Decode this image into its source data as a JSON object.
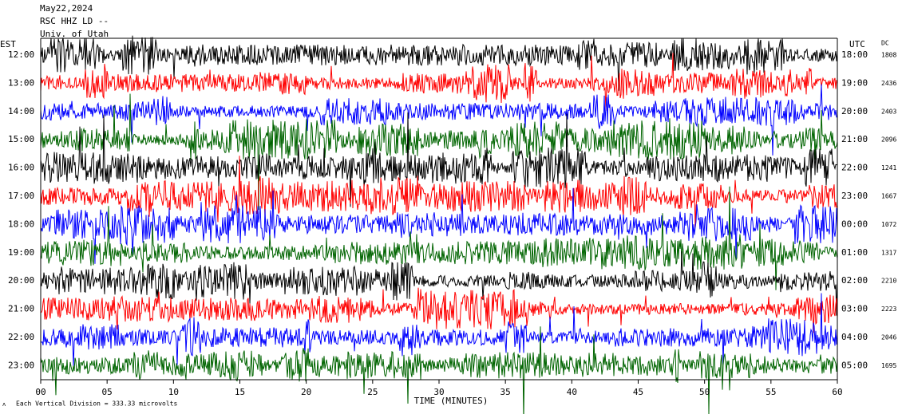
{
  "chart_data": {
    "type": "helicorder",
    "date": "May22,2024",
    "station": "RSC HHZ LD --",
    "source": "Univ. of Utah",
    "left_axis_title": "EST",
    "right_axis_title": "UTC",
    "dc_title": "DC",
    "rows": [
      {
        "est": "12:00",
        "utc": "18:00",
        "dc": "1808"
      },
      {
        "est": "13:00",
        "utc": "19:00",
        "dc": "2436"
      },
      {
        "est": "14:00",
        "utc": "20:00",
        "dc": "2403"
      },
      {
        "est": "15:00",
        "utc": "21:00",
        "dc": "2096"
      },
      {
        "est": "16:00",
        "utc": "22:00",
        "dc": "1241"
      },
      {
        "est": "17:00",
        "utc": "23:00",
        "dc": "1667"
      },
      {
        "est": "18:00",
        "utc": "00:00",
        "dc": "1072"
      },
      {
        "est": "19:00",
        "utc": "01:00",
        "dc": "1317"
      },
      {
        "est": "20:00",
        "utc": "02:00",
        "dc": "2210"
      },
      {
        "est": "21:00",
        "utc": "03:00",
        "dc": "2223"
      },
      {
        "est": "22:00",
        "utc": "04:00",
        "dc": "2046"
      },
      {
        "est": "23:00",
        "utc": "05:00",
        "dc": "1695"
      }
    ],
    "x_label": "TIME (MINUTES)",
    "xlim": [
      0,
      60
    ],
    "xticks": [
      {
        "value": 0,
        "label": "00"
      },
      {
        "value": 5,
        "label": "05"
      },
      10,
      15,
      20,
      25,
      30,
      35,
      40,
      45,
      50,
      55,
      60
    ],
    "footer": "Each Vertical Division = 333.33 microvolts",
    "trace_colors": [
      "#000000",
      "#ff0000",
      "#0000ff",
      "#006400"
    ]
  }
}
